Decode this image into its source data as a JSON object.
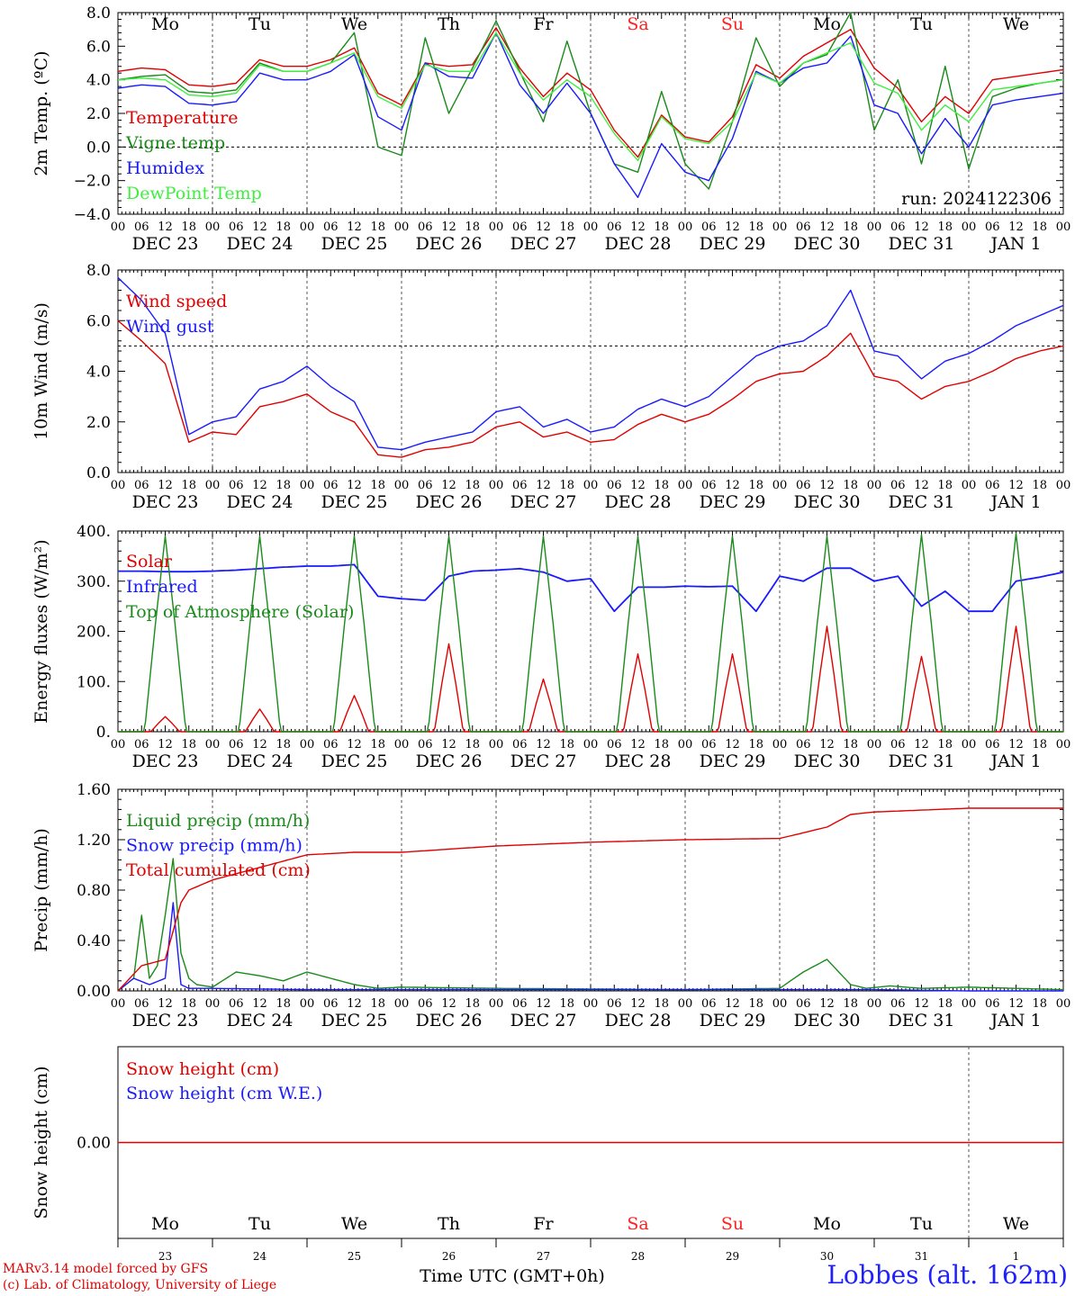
{
  "run_label": "run: 2024122306",
  "footer": {
    "credit1": "MARv3.14 model forced by GFS",
    "credit2": "(c) Lab. of Climatology, University of Liege",
    "xlabel": "Time UTC (GMT+0h)",
    "station": "Lobbes (alt. 162m)"
  },
  "colors": {
    "red": "#e00000",
    "darkgreen": "#1a8a1a",
    "blue": "#1a1aff",
    "lightgreen": "#40ee40",
    "weekend": "#ff2020"
  },
  "time_axis": {
    "hour_ticks": [
      "00",
      "06",
      "12",
      "18"
    ],
    "date_labels": [
      "DEC 23",
      "DEC 24",
      "DEC 25",
      "DEC 26",
      "DEC 27",
      "DEC 28",
      "DEC 29",
      "DEC 30",
      "DEC 31",
      "JAN  1"
    ],
    "weekdays": [
      "Mo",
      "Tu",
      "We",
      "Th",
      "Fr",
      "Sa",
      "Su",
      "Mo",
      "Tu",
      "We"
    ],
    "weekend_index": [
      5,
      6
    ],
    "day_numbers": [
      "23",
      "24",
      "25",
      "26",
      "27",
      "28",
      "29",
      "30",
      "31",
      "1"
    ]
  },
  "chart_data": [
    {
      "type": "line",
      "ylabel": "2m Temp. (ºC)",
      "ylim": [
        -4,
        8
      ],
      "yticks": [
        "−4.0",
        "−2.0",
        "0.0",
        "2.0",
        "4.0",
        "6.0",
        "8.0"
      ],
      "x_hours": [
        0,
        6,
        12,
        18,
        24,
        30,
        36,
        42,
        48,
        54,
        60,
        66,
        72,
        78,
        84,
        90,
        96,
        102,
        108,
        114,
        120,
        126,
        132,
        138,
        144,
        150,
        156,
        162,
        168,
        174,
        180,
        186,
        192,
        198,
        204,
        210,
        216,
        222,
        228,
        234,
        240
      ],
      "series": [
        {
          "name": "Temperature",
          "color": "#e00000",
          "values": [
            4.5,
            4.7,
            4.6,
            3.7,
            3.6,
            3.8,
            5.2,
            4.8,
            4.8,
            5.2,
            5.9,
            3.2,
            2.5,
            5.0,
            4.8,
            4.9,
            7.1,
            4.7,
            3.0,
            4.4,
            3.4,
            1.0,
            -0.6,
            1.9,
            0.6,
            0.3,
            1.8,
            4.9,
            4.1,
            5.4,
            6.2,
            7.0,
            4.7,
            3.5,
            1.5,
            3.0,
            2.0,
            4.0,
            4.2,
            4.4,
            4.6
          ]
        },
        {
          "name": "Vigne temp",
          "color": "#1a8a1a",
          "values": [
            4.0,
            4.2,
            4.3,
            3.3,
            3.2,
            3.4,
            5.0,
            4.5,
            4.5,
            5.0,
            6.8,
            0.0,
            -0.5,
            6.5,
            2.0,
            4.7,
            7.5,
            4.5,
            1.5,
            6.3,
            2.0,
            -1.0,
            -1.5,
            3.3,
            -1.0,
            -2.5,
            1.5,
            6.5,
            3.6,
            5.0,
            5.5,
            8.0,
            1.0,
            4.0,
            -1.0,
            4.8,
            -1.3,
            3.0,
            3.5,
            3.8,
            4.0
          ]
        },
        {
          "name": "Humidex",
          "color": "#1a1aff",
          "values": [
            3.5,
            3.7,
            3.6,
            2.6,
            2.5,
            2.7,
            4.4,
            4.0,
            4.0,
            4.5,
            5.5,
            1.8,
            1.0,
            5.0,
            4.2,
            4.1,
            6.8,
            3.7,
            2.0,
            3.8,
            2.0,
            -1.0,
            -3.0,
            0.2,
            -1.5,
            -2.0,
            0.5,
            4.5,
            3.8,
            4.7,
            5.0,
            6.6,
            2.5,
            2.0,
            -0.4,
            1.7,
            0.0,
            2.5,
            2.8,
            3.0,
            3.2
          ]
        },
        {
          "name": "DewPoint Temp",
          "color": "#40ee40",
          "values": [
            4.0,
            4.1,
            4.0,
            3.1,
            3.0,
            3.2,
            4.9,
            4.5,
            4.5,
            5.0,
            5.6,
            3.0,
            2.3,
            4.9,
            4.5,
            4.5,
            6.8,
            4.4,
            2.8,
            4.0,
            3.0,
            0.8,
            -0.8,
            1.8,
            0.5,
            0.2,
            1.5,
            4.4,
            3.8,
            5.0,
            5.6,
            6.2,
            3.8,
            3.2,
            1.0,
            2.5,
            1.5,
            3.4,
            3.6,
            3.8,
            4.0
          ]
        }
      ]
    },
    {
      "type": "line",
      "ylabel": "10m Wind (m/s)",
      "ylim": [
        0,
        8
      ],
      "yticks": [
        "0.0",
        "2.0",
        "4.0",
        "6.0",
        "8.0"
      ],
      "x_hours": [
        0,
        6,
        12,
        18,
        24,
        30,
        36,
        42,
        48,
        54,
        60,
        66,
        72,
        78,
        84,
        90,
        96,
        102,
        108,
        114,
        120,
        126,
        132,
        138,
        144,
        150,
        156,
        162,
        168,
        174,
        180,
        186,
        192,
        198,
        204,
        210,
        216,
        222,
        228,
        234,
        240
      ],
      "series": [
        {
          "name": "Wind speed",
          "color": "#e00000",
          "values": [
            6.0,
            5.2,
            4.3,
            1.2,
            1.6,
            1.5,
            2.6,
            2.8,
            3.1,
            2.4,
            2.0,
            0.7,
            0.6,
            0.9,
            1.0,
            1.2,
            1.8,
            2.0,
            1.4,
            1.6,
            1.2,
            1.3,
            1.9,
            2.3,
            2.0,
            2.3,
            2.9,
            3.6,
            3.9,
            4.0,
            4.6,
            5.5,
            3.8,
            3.6,
            2.9,
            3.4,
            3.6,
            4.0,
            4.5,
            4.8,
            5.0
          ]
        },
        {
          "name": "Wind gust",
          "color": "#1a1aff",
          "values": [
            7.7,
            6.8,
            5.5,
            1.5,
            2.0,
            2.2,
            3.3,
            3.6,
            4.2,
            3.4,
            2.8,
            1.0,
            0.9,
            1.2,
            1.4,
            1.6,
            2.4,
            2.6,
            1.8,
            2.1,
            1.6,
            1.8,
            2.5,
            2.9,
            2.6,
            3.0,
            3.8,
            4.6,
            5.0,
            5.2,
            5.8,
            7.2,
            4.8,
            4.6,
            3.7,
            4.4,
            4.7,
            5.2,
            5.8,
            6.2,
            6.6
          ]
        }
      ]
    },
    {
      "type": "line",
      "ylabel": "Energy fluxes (W/m²)",
      "ylim": [
        0,
        400
      ],
      "yticks": [
        "0.",
        "100.",
        "200.",
        "300.",
        "400."
      ],
      "series": [
        {
          "name": "Solar",
          "color": "#e00000",
          "daily_peak": [
            30,
            45,
            72,
            175,
            105,
            155,
            155,
            210,
            150,
            210
          ]
        },
        {
          "name": "Infrared",
          "color": "#1a1aff",
          "x_hours": [
            0,
            6,
            12,
            18,
            24,
            30,
            36,
            42,
            48,
            54,
            60,
            66,
            72,
            78,
            84,
            90,
            96,
            102,
            108,
            114,
            120,
            126,
            132,
            138,
            144,
            150,
            156,
            162,
            168,
            174,
            180,
            186,
            192,
            198,
            204,
            210,
            216,
            222,
            228,
            234,
            240
          ],
          "values": [
            320,
            320,
            319,
            319,
            320,
            322,
            325,
            328,
            330,
            330,
            333,
            270,
            265,
            262,
            310,
            320,
            322,
            325,
            318,
            300,
            305,
            240,
            288,
            288,
            290,
            289,
            290,
            240,
            310,
            300,
            326,
            326,
            300,
            310,
            250,
            280,
            240,
            240,
            300,
            308,
            318
          ]
        },
        {
          "name": "Top of Atmosphere (Solar)",
          "color": "#1a8a1a",
          "daily_peak": [
            390,
            390,
            390,
            390,
            390,
            390,
            390,
            390,
            393,
            395
          ]
        }
      ]
    },
    {
      "type": "line",
      "ylabel": "Precip (mm/h)",
      "ylim": [
        0,
        1.6
      ],
      "yticks": [
        "0.00",
        "0.40",
        "0.80",
        "1.20",
        "1.60"
      ],
      "series": [
        {
          "name": "Liquid precip (mm/h)",
          "color": "#1a8a1a",
          "x_hours": [
            0,
            4,
            6,
            8,
            10,
            12,
            14,
            16,
            18,
            20,
            24,
            30,
            36,
            42,
            48,
            54,
            60,
            66,
            72,
            96,
            144,
            168,
            174,
            180,
            186,
            190,
            196,
            204,
            216,
            228,
            240
          ],
          "values": [
            0.0,
            0.1,
            0.6,
            0.1,
            0.2,
            0.6,
            1.05,
            0.3,
            0.1,
            0.05,
            0.03,
            0.15,
            0.12,
            0.08,
            0.15,
            0.1,
            0.05,
            0.02,
            0.03,
            0.02,
            0.01,
            0.02,
            0.15,
            0.25,
            0.05,
            0.02,
            0.04,
            0.02,
            0.03,
            0.02,
            0.01
          ]
        },
        {
          "name": "Snow precip (mm/h)",
          "color": "#1a1aff",
          "x_hours": [
            0,
            4,
            8,
            12,
            14,
            16,
            18,
            24,
            48,
            72,
            96,
            120,
            144,
            168,
            192,
            216,
            240
          ],
          "values": [
            0.0,
            0.1,
            0.05,
            0.1,
            0.7,
            0.05,
            0.02,
            0.02,
            0.01,
            0.01,
            0.01,
            0.01,
            0.01,
            0.01,
            0.01,
            0.0,
            0.0
          ]
        },
        {
          "name": "Total cumulated (cm)",
          "color": "#e00000",
          "x_hours": [
            0,
            6,
            12,
            16,
            18,
            24,
            36,
            48,
            60,
            72,
            96,
            120,
            144,
            168,
            180,
            186,
            192,
            216,
            240
          ],
          "values": [
            0.0,
            0.2,
            0.25,
            0.7,
            0.8,
            0.88,
            0.98,
            1.08,
            1.1,
            1.1,
            1.15,
            1.18,
            1.2,
            1.21,
            1.3,
            1.4,
            1.42,
            1.45,
            1.45
          ]
        }
      ]
    },
    {
      "type": "line",
      "ylabel": "Snow height (cm)",
      "yticks": [
        "0.00"
      ],
      "series": [
        {
          "name": "Snow height (cm)",
          "color": "#e00000",
          "values": [
            0,
            0
          ]
        },
        {
          "name": "Snow height (cm W.E.)",
          "color": "#1a1aff",
          "values": [
            0,
            0
          ]
        }
      ]
    }
  ]
}
